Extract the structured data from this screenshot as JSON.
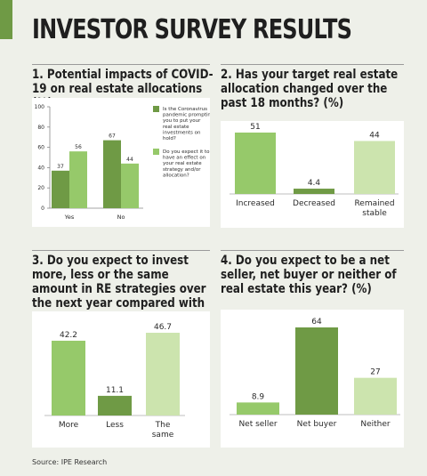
{
  "title": "INVESTOR SURVEY RESULTS",
  "source": "Source: IPE Research",
  "colors": {
    "dark": "#6f9a45",
    "medium": "#96c96a",
    "light": "#cce4ae",
    "accent": "#6f9a45"
  },
  "chart_data": [
    {
      "type": "bar",
      "title": "1. Potential impacts of COVID-19 on real estate allocations (%)",
      "categories": [
        "Yes",
        "No"
      ],
      "series": [
        {
          "name": "Is the Coronavirus pandemic prompting you to put your real estate investments on hold?",
          "values": [
            37,
            67
          ]
        },
        {
          "name": "Do you expect it to have an effect on your real estate strategy and/or allocation?",
          "values": [
            56,
            44
          ]
        }
      ],
      "ylim": [
        0,
        100
      ],
      "yticks": [
        "0",
        "20",
        "40",
        "60",
        "80",
        "100"
      ],
      "legend": "right"
    },
    {
      "type": "bar",
      "title": "2. Has your target real estate allocation changed over the past 18 months? (%)",
      "categories": [
        "Increased",
        "Decreased",
        "Remained stable"
      ],
      "values": [
        51,
        4.4,
        44
      ],
      "labels": [
        "51",
        "4.4",
        "44"
      ]
    },
    {
      "type": "bar",
      "title": "3. Do you expect to invest more, less or the same amount in RE strategies over the next year compared with last year? (%)",
      "categories": [
        "More",
        "Less",
        "The same"
      ],
      "values": [
        42.2,
        11.1,
        46.7
      ],
      "labels": [
        "42.2",
        "11.1",
        "46.7"
      ]
    },
    {
      "type": "bar",
      "title": "4. Do you expect to be a net seller, net buyer or neither of real estate this year? (%)",
      "categories": [
        "Net seller",
        "Net buyer",
        "Neither"
      ],
      "values": [
        8.9,
        64,
        27
      ],
      "labels": [
        "8.9",
        "64",
        "27"
      ]
    }
  ]
}
